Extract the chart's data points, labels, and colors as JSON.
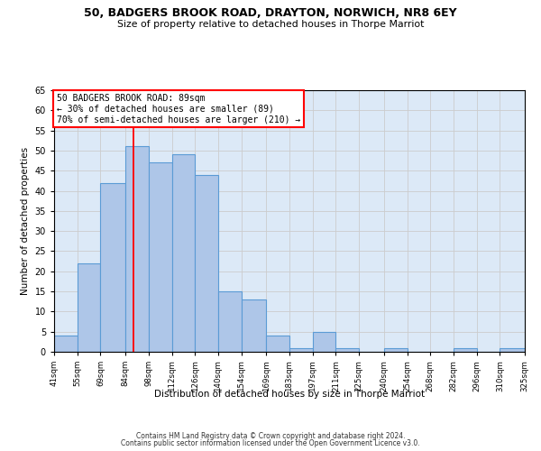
{
  "title": "50, BADGERS BROOK ROAD, DRAYTON, NORWICH, NR8 6EY",
  "subtitle": "Size of property relative to detached houses in Thorpe Marriot",
  "xlabel": "Distribution of detached houses by size in Thorpe Marriot",
  "ylabel": "Number of detached properties",
  "footer_line1": "Contains HM Land Registry data © Crown copyright and database right 2024.",
  "footer_line2": "Contains public sector information licensed under the Open Government Licence v3.0.",
  "annotation_title": "50 BADGERS BROOK ROAD: 89sqm",
  "annotation_line2": "← 30% of detached houses are smaller (89)",
  "annotation_line3": "70% of semi-detached houses are larger (210) →",
  "property_size_sqm": 89,
  "bin_edges": [
    41,
    55,
    69,
    84,
    98,
    112,
    126,
    140,
    154,
    169,
    183,
    197,
    211,
    225,
    240,
    254,
    268,
    282,
    296,
    310,
    325
  ],
  "bar_values": [
    4,
    22,
    42,
    51,
    47,
    49,
    44,
    15,
    13,
    4,
    1,
    5,
    1,
    0,
    1,
    0,
    0,
    1,
    0,
    1
  ],
  "bar_color": "#aec6e8",
  "bar_edge_color": "#5b9bd5",
  "red_line_x": 89,
  "ylim": [
    0,
    65
  ],
  "yticks": [
    0,
    5,
    10,
    15,
    20,
    25,
    30,
    35,
    40,
    45,
    50,
    55,
    60,
    65
  ],
  "grid_color": "#cccccc",
  "background_color": "#dce9f7",
  "annotation_box_edge_color": "red"
}
